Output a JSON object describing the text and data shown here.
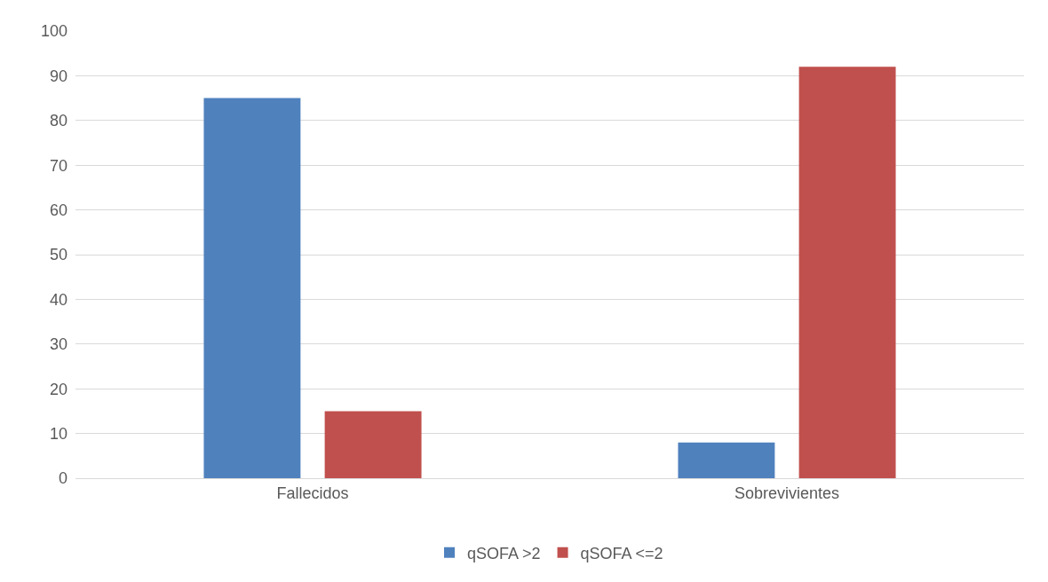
{
  "chart_data": {
    "type": "bar",
    "categories": [
      "Fallecidos",
      "Sobrevivientes"
    ],
    "series": [
      {
        "name": "qSOFA >2",
        "color": "#4f81bd",
        "values": [
          85,
          8
        ]
      },
      {
        "name": "qSOFA <=2",
        "color": "#c0504d",
        "values": [
          15,
          92
        ]
      }
    ],
    "ylim": [
      0,
      100
    ],
    "yticks": [
      0,
      10,
      20,
      30,
      40,
      50,
      60,
      70,
      80,
      90,
      100
    ],
    "grid": "y",
    "legend": "bottom"
  }
}
